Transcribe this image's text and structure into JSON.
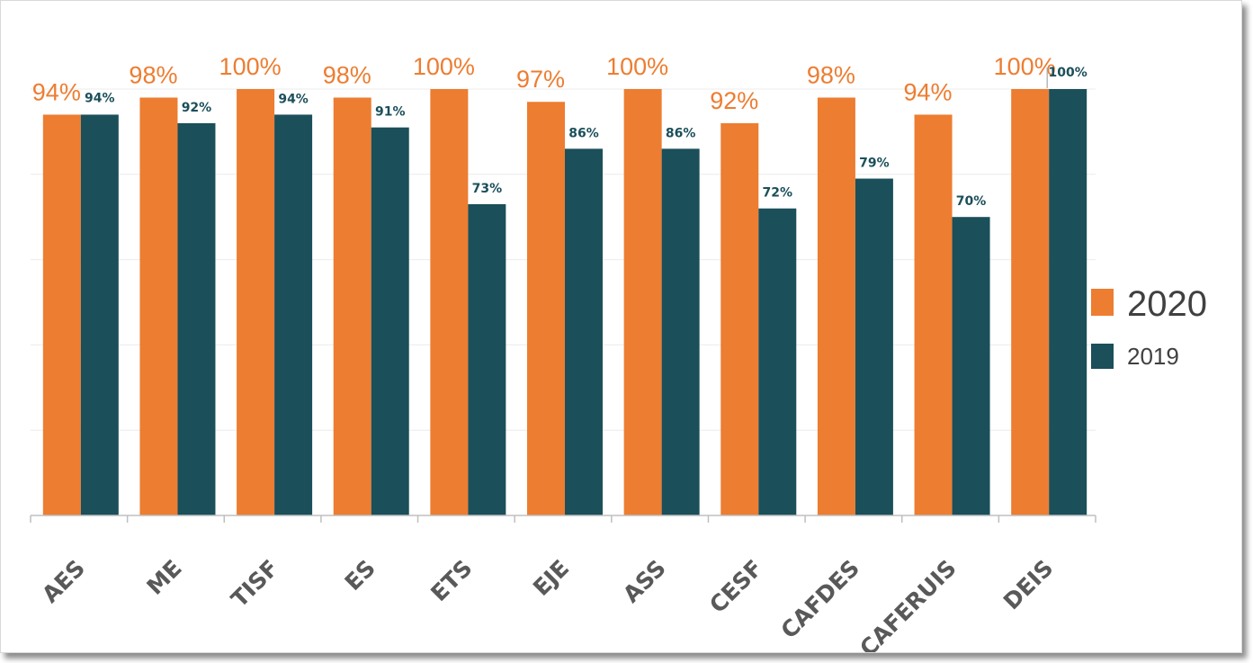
{
  "chart_data": {
    "type": "bar",
    "categories": [
      "AES",
      "ME",
      "TISF",
      "ES",
      "ETS",
      "EJE",
      "ASS",
      "CESF",
      "CAFDES",
      "CAFERUIS",
      "DEIS"
    ],
    "series": [
      {
        "name": "2020",
        "values": [
          94,
          98,
          100,
          98,
          100,
          97,
          100,
          92,
          98,
          94,
          100
        ],
        "labels": [
          "94%",
          "98%",
          "100%",
          "98%",
          "100%",
          "97%",
          "100%",
          "92%",
          "98%",
          "94%",
          "100%"
        ],
        "color": "#ed7d31"
      },
      {
        "name": "2019",
        "values": [
          94,
          92,
          94,
          91,
          73,
          86,
          86,
          72,
          79,
          70,
          100
        ],
        "labels": [
          "94%",
          "92%",
          "94%",
          "91%",
          "73%",
          "86%",
          "86%",
          "72%",
          "79%",
          "70%",
          "100%"
        ],
        "color": "#1b4f5a"
      }
    ],
    "title": "",
    "xlabel": "",
    "ylabel": "",
    "ylim": [
      0,
      100
    ],
    "grid": true,
    "legend": "right"
  }
}
